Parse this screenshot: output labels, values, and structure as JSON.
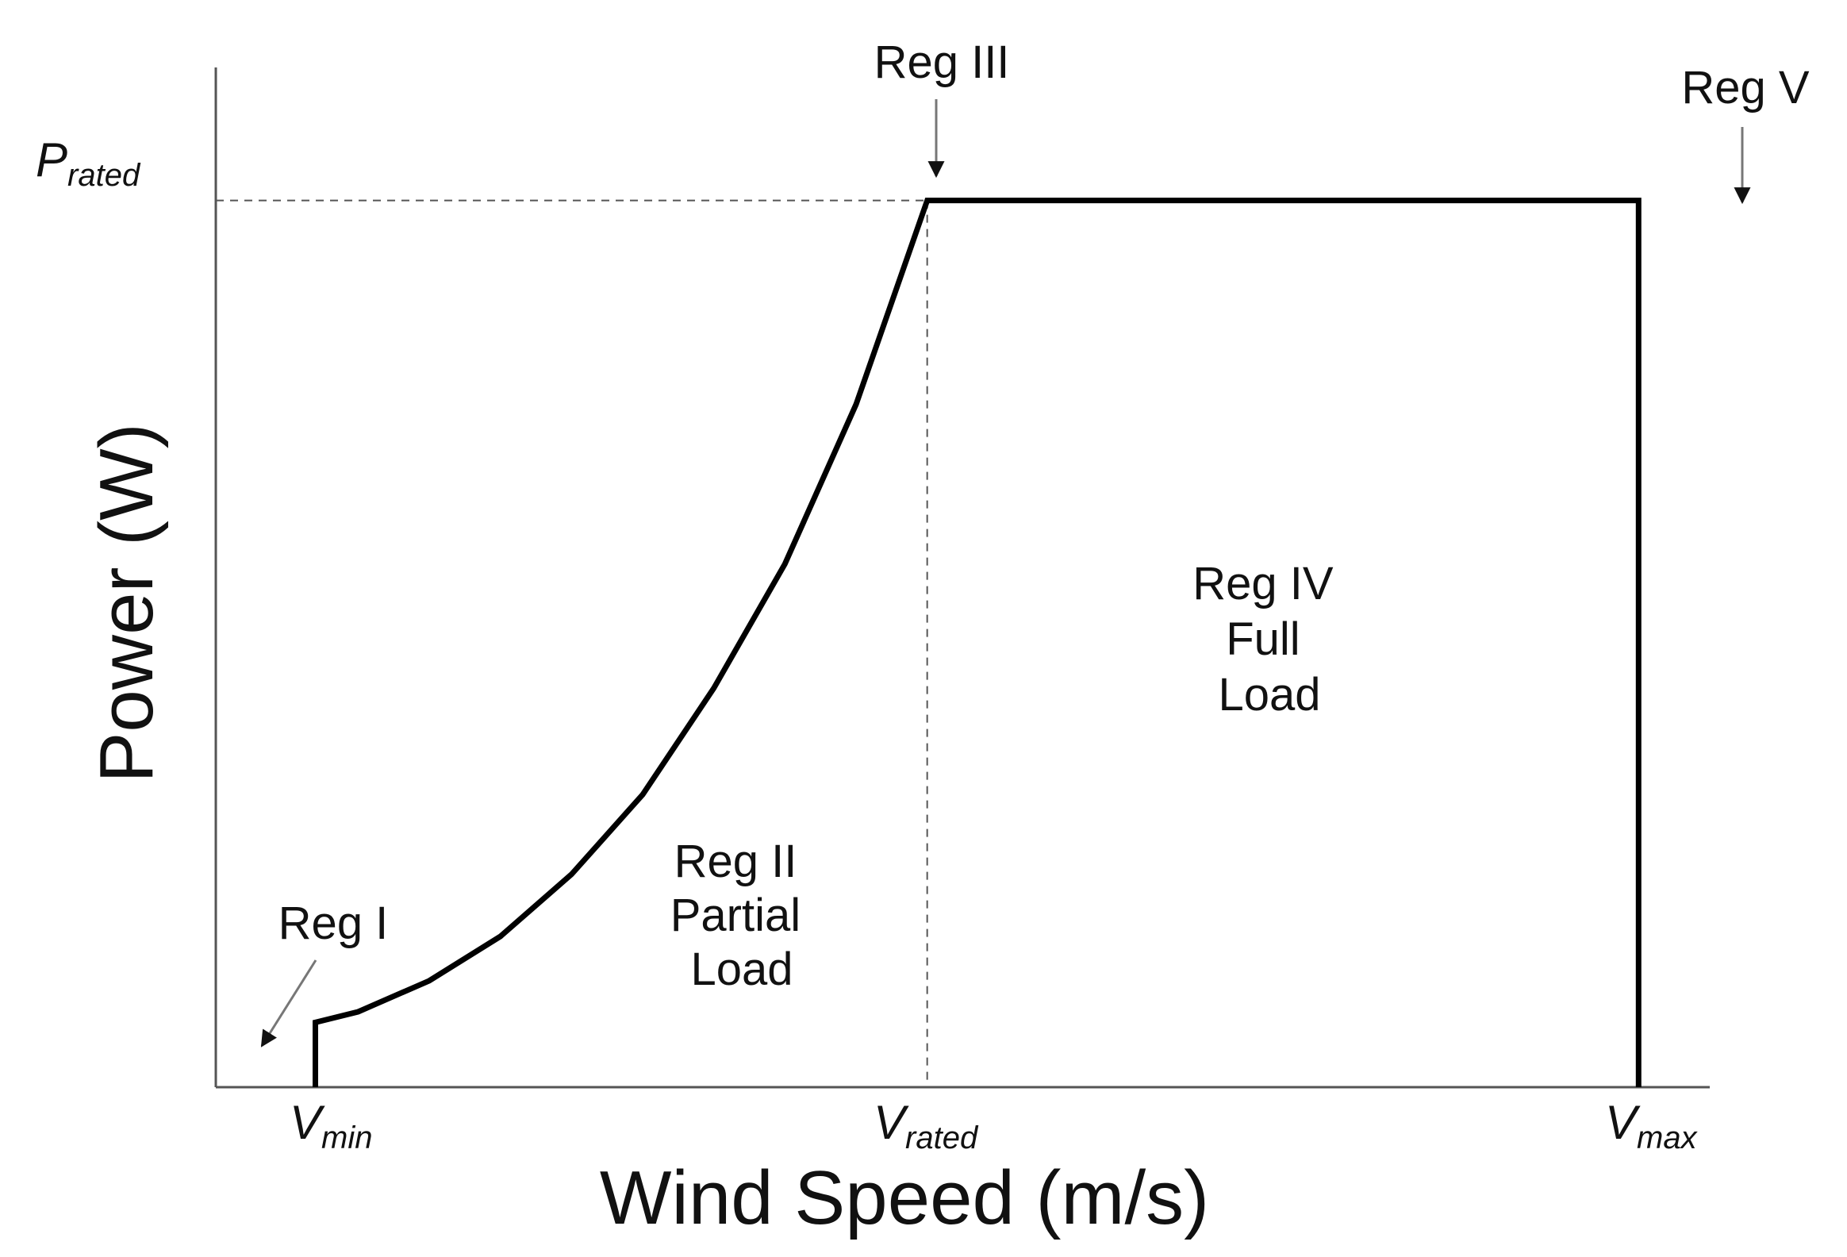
{
  "chart_data": {
    "type": "line",
    "title": "",
    "xlabel": "Wind Speed (m/s)",
    "ylabel": "Power (W)",
    "x_ticks": [
      {
        "main": "V",
        "sub": "min"
      },
      {
        "main": "V",
        "sub": "rated"
      },
      {
        "main": "V",
        "sub": "max"
      }
    ],
    "y_ticks": [
      {
        "main": "P",
        "sub": "rated"
      }
    ],
    "xlim": [
      0,
      2.1
    ],
    "ylim": [
      0,
      1.15
    ],
    "reference_lines": {
      "x": 1.0,
      "y": 1.0,
      "style": "dashed"
    },
    "series": [
      {
        "x": [
          0.14,
          0.14,
          0.2,
          0.3,
          0.4,
          0.5,
          0.6,
          0.7,
          0.8,
          0.9,
          1.0,
          1.0,
          2.0,
          2.0
        ],
        "y": [
          0.0,
          0.073,
          0.085,
          0.12,
          0.17,
          0.24,
          0.33,
          0.45,
          0.59,
          0.77,
          1.0,
          1.0,
          1.0,
          0.0
        ]
      }
    ],
    "annotations": [
      {
        "lines": [
          "Reg I"
        ],
        "arrow": true
      },
      {
        "lines": [
          "Reg II",
          "Partial",
          "Load"
        ],
        "arrow": false
      },
      {
        "lines": [
          "Reg III"
        ],
        "arrow": true
      },
      {
        "lines": [
          "Reg IV",
          "Full",
          "Load"
        ],
        "arrow": false
      },
      {
        "lines": [
          "Reg V"
        ],
        "arrow": true
      }
    ]
  }
}
